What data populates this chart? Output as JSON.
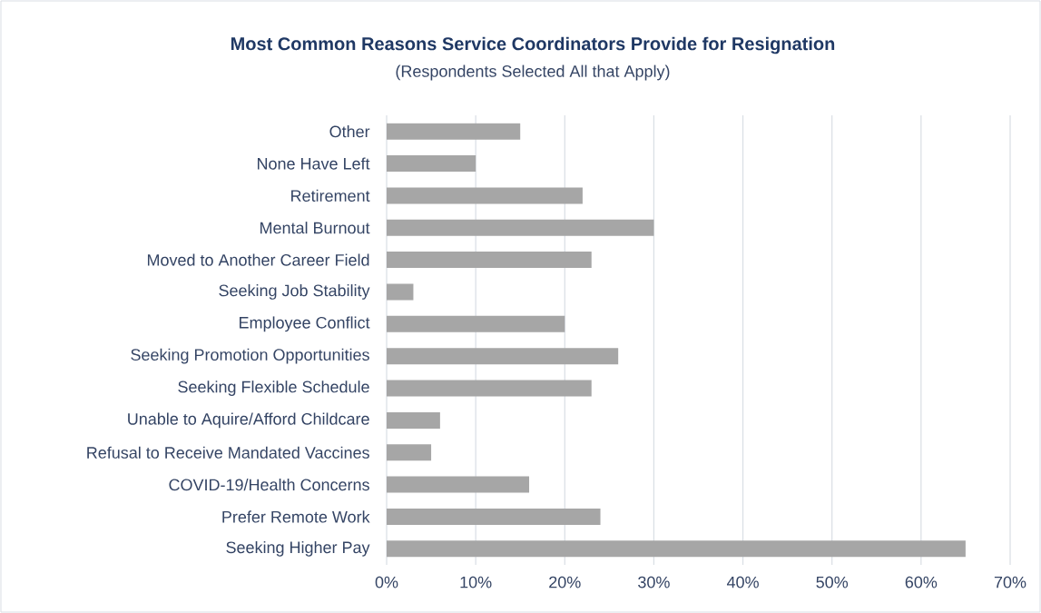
{
  "chart_data": {
    "type": "bar",
    "orientation": "horizontal",
    "title": "Most Common Reasons Service Coordinators Provide for Resignation",
    "subtitle": "(Respondents Selected All that Apply)",
    "categories": [
      "Other",
      "None Have Left",
      "Retirement",
      "Mental Burnout",
      "Moved to Another Career Field",
      "Seeking Job Stability",
      "Employee Conflict",
      "Seeking Promotion Opportunities",
      "Seeking Flexible Schedule",
      "Unable to Aquire/Afford Childcare",
      "Refusal to Receive Mandated Vaccines",
      "COVID-19/Health Concerns",
      "Prefer Remote Work",
      "Seeking Higher Pay"
    ],
    "values": [
      15,
      10,
      22,
      30,
      23,
      3,
      20,
      26,
      23,
      6,
      5,
      16,
      24,
      65
    ],
    "color": "#a6a6a6",
    "xlim": [
      0,
      70
    ],
    "xticks": [
      {
        "value": 0,
        "label": "0%"
      },
      {
        "value": 10,
        "label": "10%"
      },
      {
        "value": 20,
        "label": "20%"
      },
      {
        "value": 30,
        "label": "30%"
      },
      {
        "value": 40,
        "label": "40%"
      },
      {
        "value": 50,
        "label": "50%"
      },
      {
        "value": 60,
        "label": "60%"
      },
      {
        "value": 70,
        "label": "70%"
      }
    ],
    "grid": "x"
  }
}
